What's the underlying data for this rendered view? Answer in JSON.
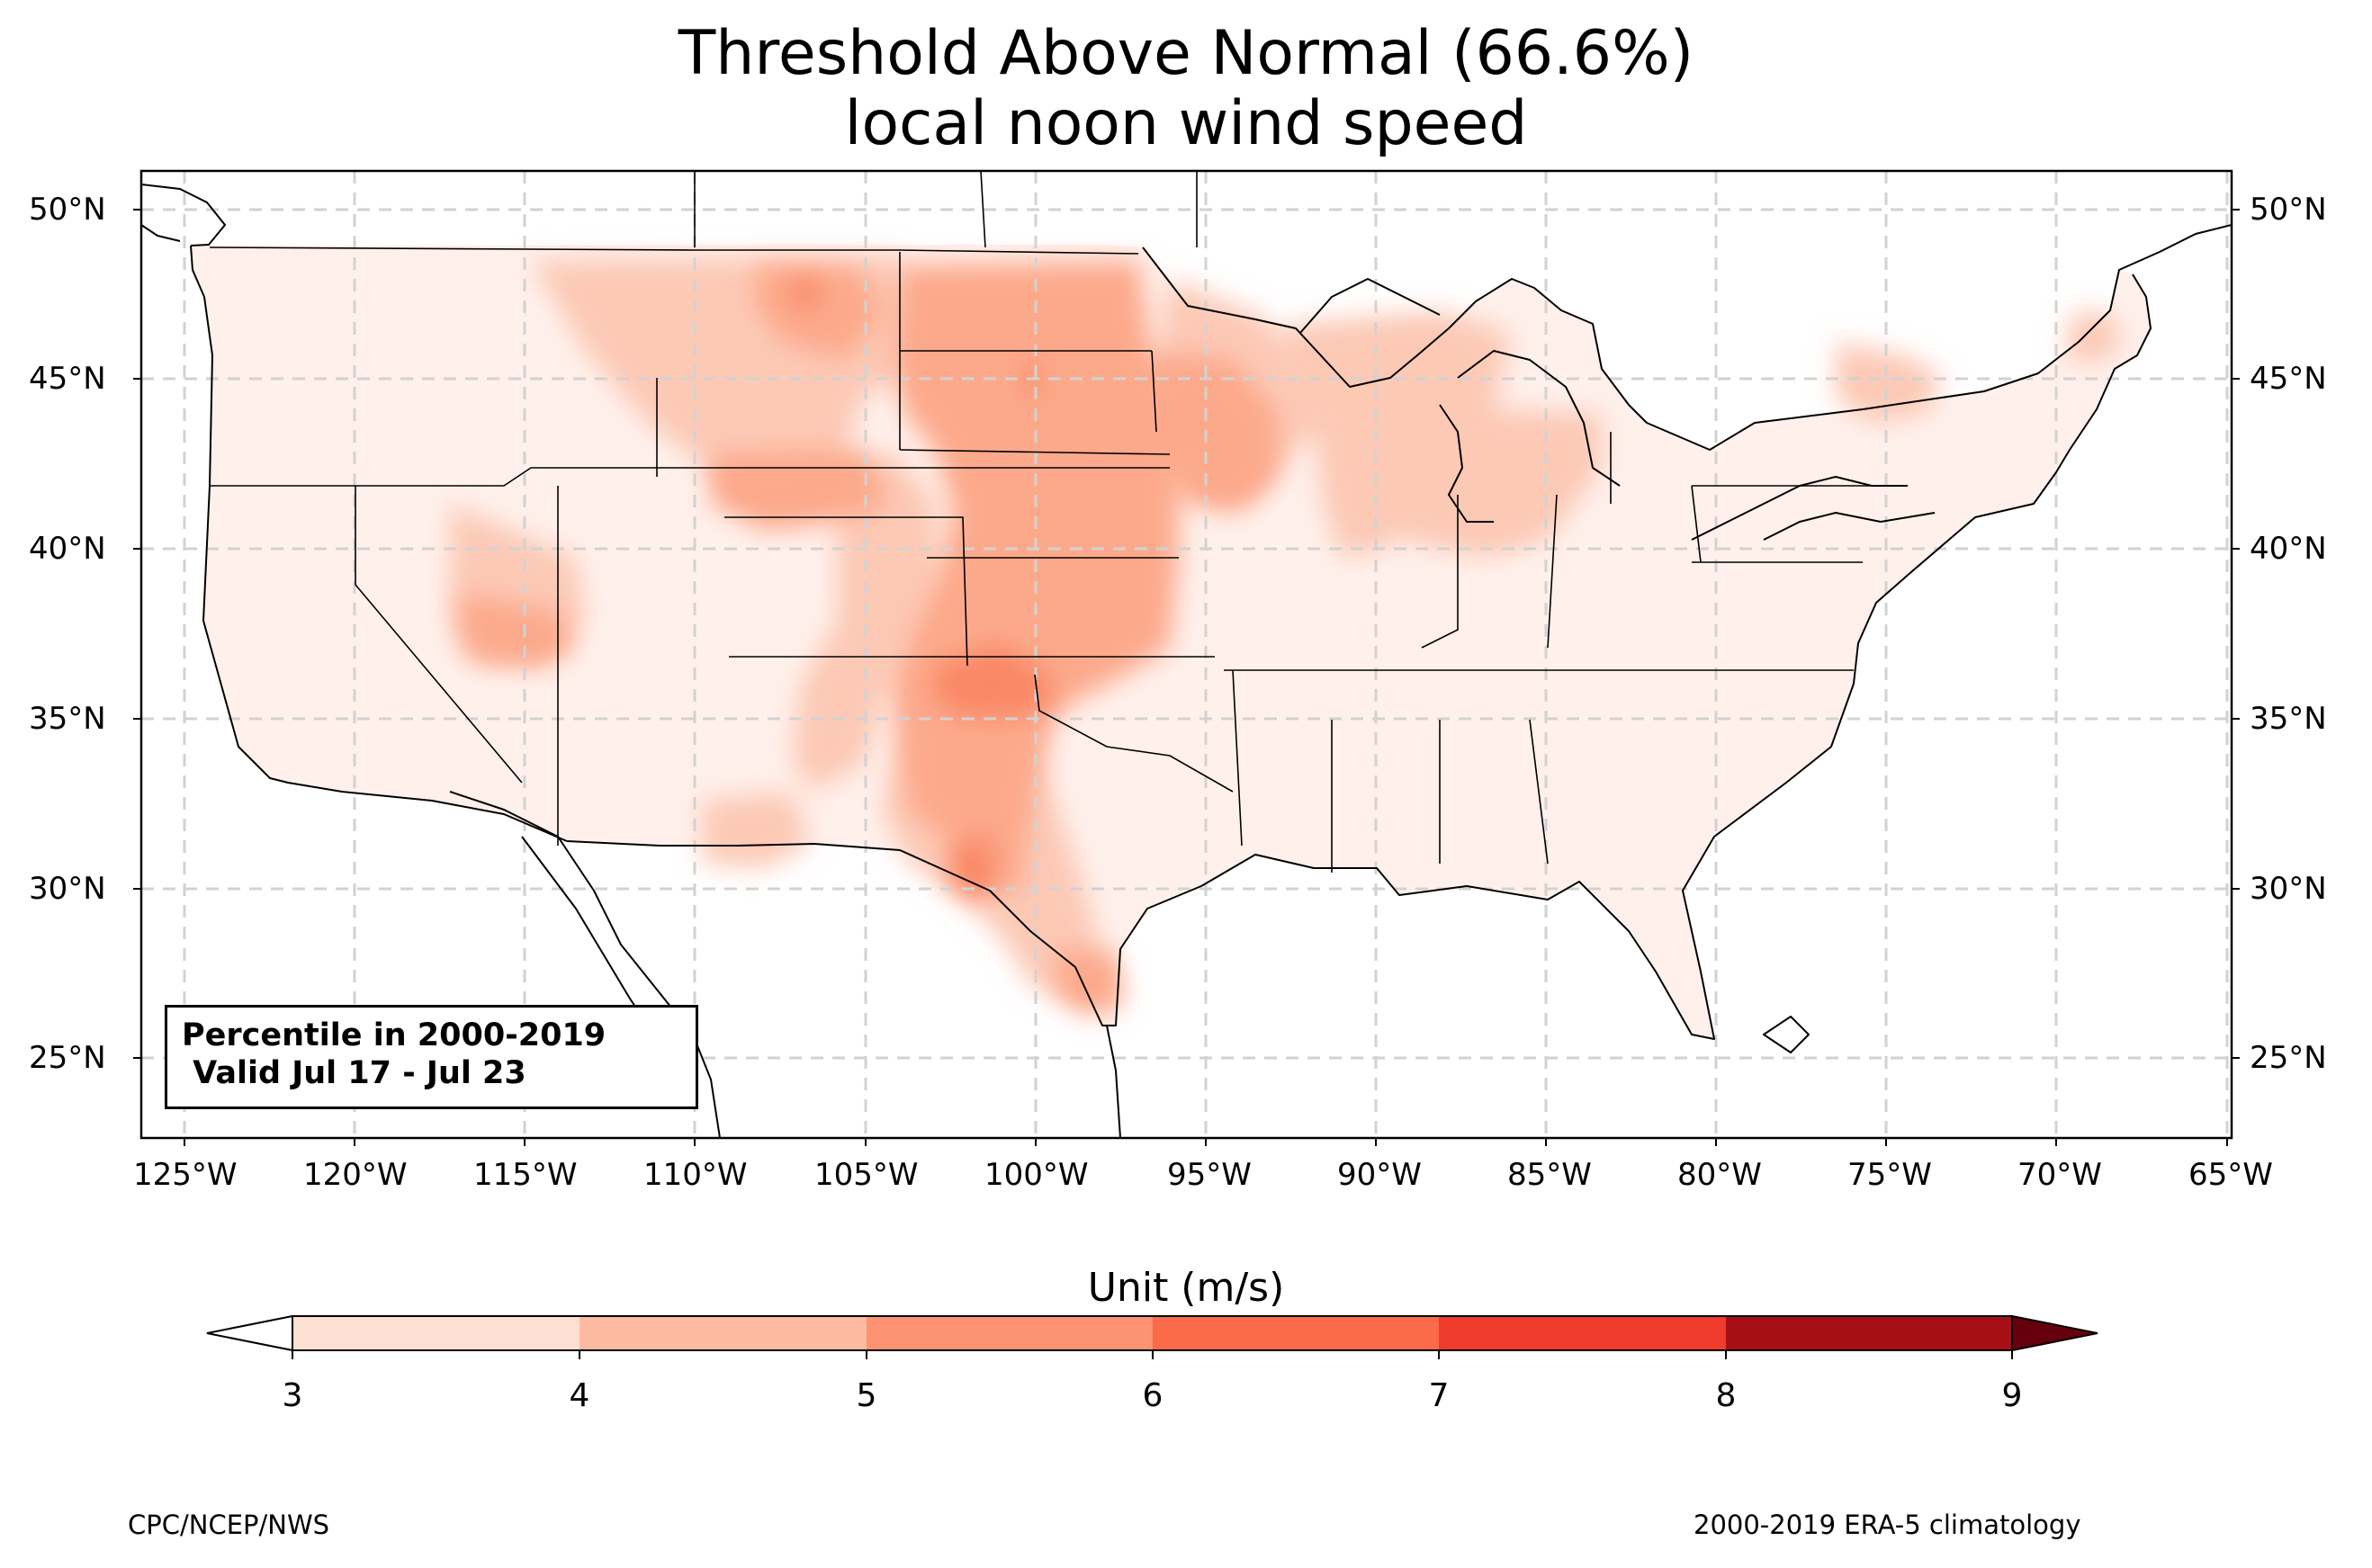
{
  "title": {
    "line1": "Threshold Above Normal (66.6%)",
    "line2": "local noon wind speed"
  },
  "info_box": {
    "line1": "Percentile in 2000-2019",
    "line2": " Valid Jul 17 - Jul 23"
  },
  "map": {
    "lon_range": [
      -126.3,
      -64.9
    ],
    "lat_range": [
      22.8,
      51.3
    ],
    "longitude_ticks": [
      "125°W",
      "120°W",
      "115°W",
      "110°W",
      "105°W",
      "100°W",
      "95°W",
      "90°W",
      "85°W",
      "80°W",
      "75°W",
      "70°W",
      "65°W"
    ],
    "latitude_ticks": [
      "50°N",
      "45°N",
      "40°N",
      "35°N",
      "30°N",
      "25°N"
    ],
    "gridlines": true
  },
  "colorbar": {
    "label": "Unit (m/s)",
    "ticks": [
      "3",
      "4",
      "5",
      "6",
      "7",
      "8",
      "9"
    ],
    "extend": "both",
    "colors": [
      "#fee0d2",
      "#fcbba1",
      "#fc9272",
      "#fb6a4a",
      "#ef3b2c",
      "#cb181d",
      "#a50f15"
    ]
  },
  "footer": {
    "left": "CPC/NCEP/NWS",
    "right": "2000-2019 ERA-5 climatology"
  }
}
